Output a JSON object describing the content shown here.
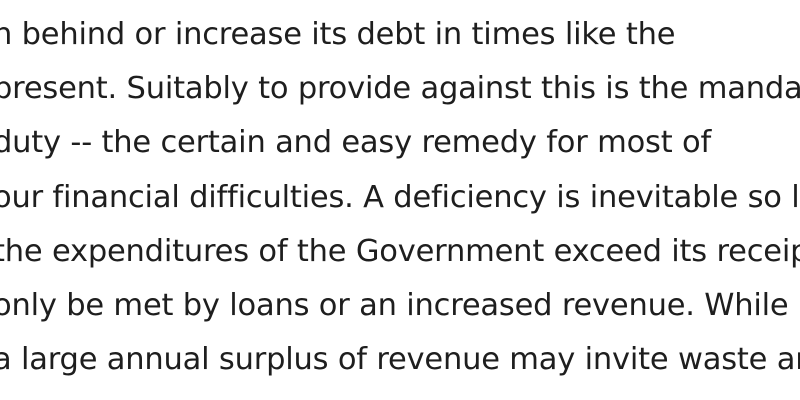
{
  "document": {
    "lines": [
      "n behind or increase its debt in times like the",
      "present. Suitably to provide against this is the mandate",
      "duty -- the certain and easy remedy for most of",
      "our financial difficulties. A deficiency is inevitable so lo",
      "the expenditures of the Government exceed its receipt",
      "only be met by loans or an increased revenue. While",
      "a large annual surplus of revenue may invite waste and"
    ]
  }
}
